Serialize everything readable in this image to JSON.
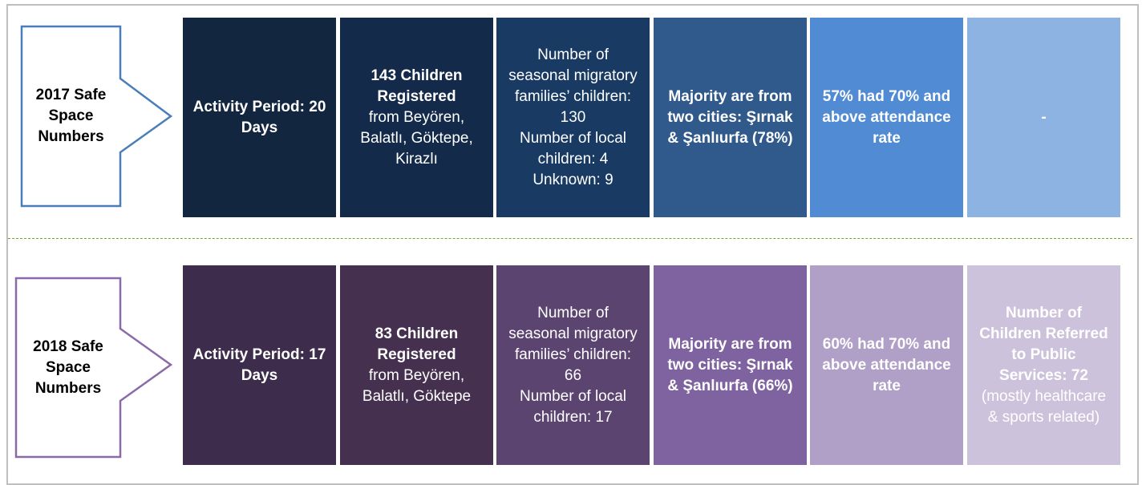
{
  "rows": [
    {
      "label": "2017 Safe Space Numbers",
      "border_color": "#4a7ebb",
      "boxes": [
        {
          "color": "#13263f",
          "paragraphs": [
            {
              "text": "Activity Period: 20 Days",
              "bold": true
            }
          ]
        },
        {
          "color": "#142a4a",
          "paragraphs": [
            {
              "text": "143 Children Registered",
              "bold": true
            },
            {
              "text": "from Beyören, Balatlı, Göktepe, Kirazlı",
              "bold": false
            }
          ]
        },
        {
          "color": "#183a63",
          "paragraphs": [
            {
              "text": "Number of seasonal migratory families’ children: 130",
              "bold": false
            },
            {
              "text": "Number of local children: 4",
              "bold": false
            },
            {
              "text": "Unknown: 9",
              "bold": false
            }
          ]
        },
        {
          "color": "#30598c",
          "paragraphs": [
            {
              "text": "Majority are from two cities: Şırnak & Şanlıurfa (78%)",
              "bold": true
            }
          ]
        },
        {
          "color": "#518bd3",
          "paragraphs": [
            {
              "text": "57% had 70% and above attendance rate",
              "bold": true
            }
          ]
        },
        {
          "color": "#8db3e2",
          "paragraphs": [
            {
              "text": "-",
              "bold": true
            }
          ]
        }
      ]
    },
    {
      "label": "2018 Safe Space Numbers",
      "border_color": "#8a6aa8",
      "boxes": [
        {
          "color": "#3d2c4b",
          "paragraphs": [
            {
              "text": "Activity Period: 17 Days",
              "bold": true
            }
          ]
        },
        {
          "color": "#45304f",
          "paragraphs": [
            {
              "text": "83 Children Registered",
              "bold": true
            },
            {
              "text": "from Beyören, Balatlı, Göktepe",
              "bold": false
            }
          ]
        },
        {
          "color": "#5b4470",
          "paragraphs": [
            {
              "text": "Number of seasonal migratory families’ children: 66",
              "bold": false
            },
            {
              "text": "Number of local children: 17",
              "bold": false
            }
          ]
        },
        {
          "color": "#7f63a0",
          "paragraphs": [
            {
              "text": "Majority are from two cities: Şırnak & Şanlıurfa (66%)",
              "bold": true
            }
          ]
        },
        {
          "color": "#b09fc6",
          "paragraphs": [
            {
              "text": "60% had 70% and above attendance rate",
              "bold": true
            }
          ]
        },
        {
          "color": "#cdc2db",
          "paragraphs": [
            {
              "text": "Number of Children Referred to Public Services: 72",
              "bold": true
            },
            {
              "text": "(mostly healthcare & sports related)",
              "bold": false
            }
          ]
        }
      ]
    }
  ]
}
